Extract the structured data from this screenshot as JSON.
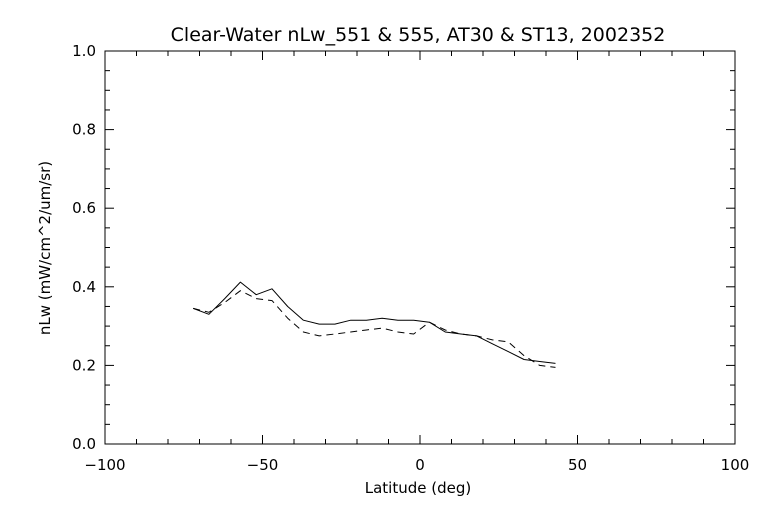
{
  "chart_data": {
    "type": "line",
    "title": "Clear-Water nLw_551 & 555, AT30 & ST13, 2002352",
    "xlabel": "Latitude (deg)",
    "ylabel": "nLw (mW/cm^2/um/sr)",
    "xlim": [
      -100,
      100
    ],
    "ylim": [
      0.0,
      1.0
    ],
    "xticks": [
      -100,
      -50,
      0,
      50,
      100
    ],
    "xtick_labels": [
      "−100",
      "−50",
      "0",
      "50",
      "100"
    ],
    "yticks": [
      0.0,
      0.2,
      0.4,
      0.6,
      0.8,
      1.0
    ],
    "ytick_labels": [
      "0.0",
      "0.2",
      "0.4",
      "0.6",
      "0.8",
      "1.0"
    ],
    "grid": false,
    "series": [
      {
        "style": "solid",
        "color": "#000000",
        "x": [
          -72,
          -67,
          -62,
          -57,
          -52,
          -47,
          -42,
          -37,
          -32,
          -27,
          -22,
          -17,
          -12,
          -7,
          -2,
          3,
          8,
          13,
          18,
          23,
          28,
          33,
          38,
          43
        ],
        "y": [
          0.345,
          0.33,
          0.37,
          0.412,
          0.38,
          0.395,
          0.35,
          0.315,
          0.305,
          0.305,
          0.315,
          0.315,
          0.32,
          0.315,
          0.315,
          0.31,
          0.285,
          0.28,
          0.275,
          0.255,
          0.235,
          0.215,
          0.21,
          0.205
        ]
      },
      {
        "style": "dashed",
        "color": "#000000",
        "x": [
          -72,
          -67,
          -62,
          -57,
          -52,
          -47,
          -42,
          -37,
          -32,
          -27,
          -22,
          -17,
          -12,
          -7,
          -2,
          3,
          8,
          13,
          18,
          23,
          28,
          33,
          38,
          43
        ],
        "y": [
          0.345,
          0.335,
          0.36,
          0.39,
          0.37,
          0.365,
          0.32,
          0.285,
          0.275,
          0.28,
          0.285,
          0.29,
          0.295,
          0.285,
          0.28,
          0.31,
          0.29,
          0.28,
          0.275,
          0.265,
          0.26,
          0.225,
          0.2,
          0.195
        ]
      }
    ]
  }
}
